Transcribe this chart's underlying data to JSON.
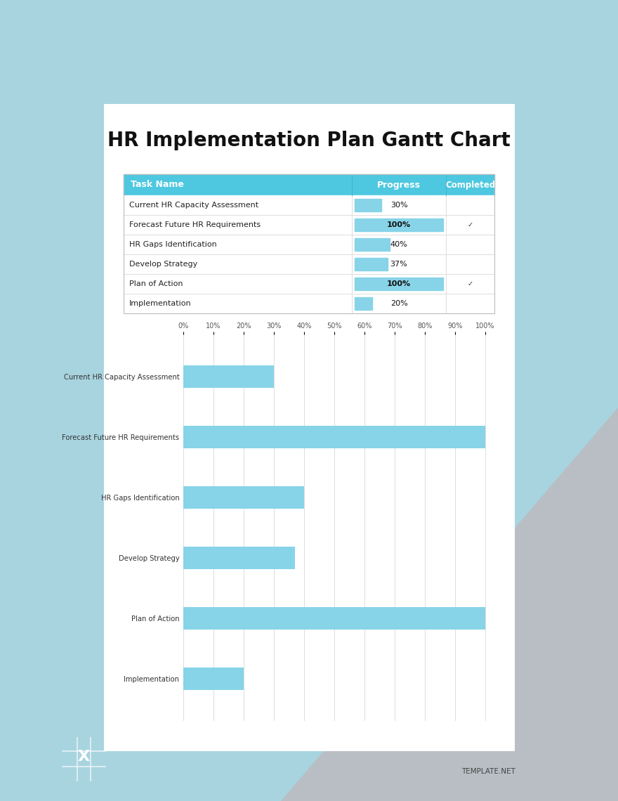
{
  "title": "HR Implementation Plan Gantt Chart",
  "tasks": [
    "Current HR Capacity Assessment",
    "Forecast Future HR Requirements",
    "HR Gaps Identification",
    "Develop Strategy",
    "Plan of Action",
    "Implementation"
  ],
  "progress": [
    30,
    100,
    40,
    37,
    100,
    20
  ],
  "completed": [
    false,
    true,
    false,
    false,
    true,
    false
  ],
  "header_bg": "#4DC8E0",
  "header_text": "#ffffff",
  "bar_color": "#87D4E8",
  "table_line_color": "#dddddd",
  "outer_bg": "#A8D4E0",
  "grey_tri_color": "#B8BEC4",
  "title_fontsize": 20,
  "tick_labels": [
    "0%",
    "10%",
    "20%",
    "30%",
    "40%",
    "50%",
    "60%",
    "70%",
    "80%",
    "90%",
    "100%"
  ],
  "tick_values": [
    0,
    10,
    20,
    30,
    40,
    50,
    60,
    70,
    80,
    90,
    100
  ]
}
